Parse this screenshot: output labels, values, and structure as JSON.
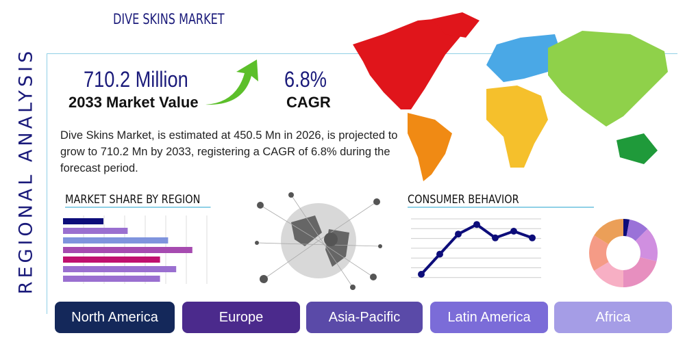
{
  "side_title": "REGIONAL ANALYSIS",
  "title": "DIVE SKINS MARKET",
  "market_value": {
    "value": "710.2 Million",
    "label": "2033 Market Value"
  },
  "cagr": {
    "value": "6.8%",
    "label": "CAGR"
  },
  "description": "Dive Skins Market, is estimated at 450.5 Mn in 2026, is projected to grow to 710.2 Mn by 2033, registering a CAGR of 6.8% during the forecast period.",
  "sections": {
    "share": "MARKET SHARE BY REGION",
    "behavior": "CONSUMER BEHAVIOR"
  },
  "regions": [
    {
      "label": "North America",
      "color": "#14285a"
    },
    {
      "label": "Europe",
      "color": "#4b2a8c"
    },
    {
      "label": "Asia-Pacific",
      "color": "#5a4aa8"
    },
    {
      "label": "Latin America",
      "color": "#7b6cd8"
    },
    {
      "label": "Africa",
      "color": "#a59de6"
    }
  ],
  "chart_data": [
    {
      "type": "bar",
      "orientation": "horizontal",
      "values": [
        2.0,
        3.2,
        5.2,
        6.4,
        4.8,
        5.6,
        4.8
      ],
      "colors": [
        "#0d0d7a",
        "#9a6fd0",
        "#7f94dd",
        "#a64bb0",
        "#c0106e",
        "#9a6fd0",
        "#9a6fd0"
      ],
      "grid": true
    },
    {
      "type": "line",
      "values": [
        1,
        3.1,
        5.2,
        6.2,
        4.8,
        5.5,
        4.8
      ],
      "color": "#0d0d7a",
      "grid": true
    },
    {
      "type": "pie",
      "donut": true,
      "values": [
        3,
        10,
        17,
        22,
        17,
        18,
        17
      ],
      "colors": [
        "#0d0d7a",
        "#9a72d8",
        "#d08fe0",
        "#e78fbf",
        "#f7afc4",
        "#f59b86",
        "#eb9f58"
      ]
    }
  ]
}
